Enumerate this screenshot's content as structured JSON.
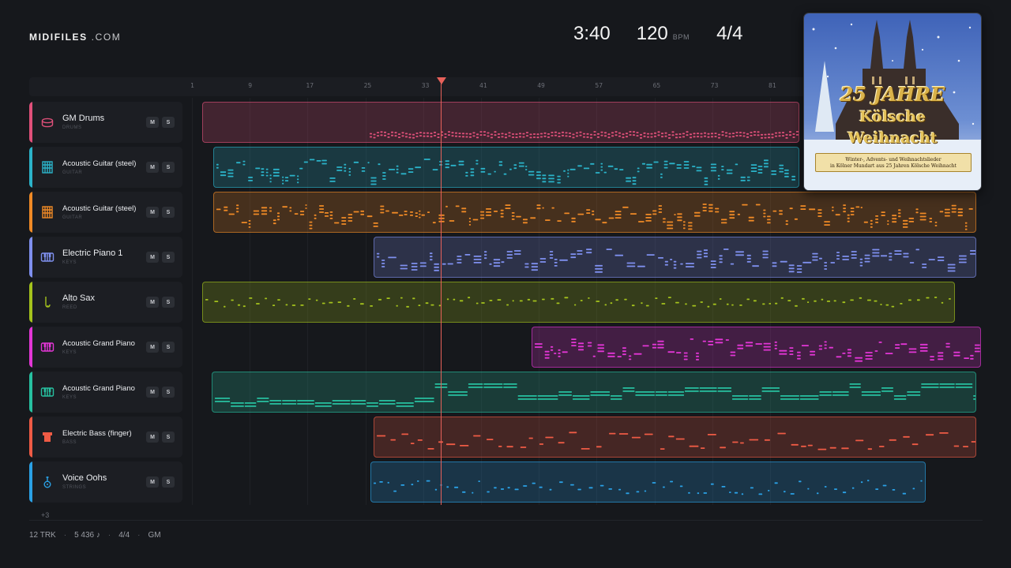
{
  "header": {
    "brand_main": "MIDIFILES",
    "brand_domain": ".COM",
    "duration": "3:40",
    "tempo": "120",
    "tempo_unit": "BPM",
    "time_signature": "4/4"
  },
  "ruler": {
    "bars": [
      "1",
      "9",
      "17",
      "25",
      "33",
      "41",
      "49",
      "57",
      "65",
      "73",
      "81"
    ]
  },
  "tracks": [
    {
      "name": "GM Drums",
      "category": "DRUMS",
      "color": "#e0507a",
      "icon": "drum-icon",
      "mute": "M",
      "solo": "S"
    },
    {
      "name": "Acoustic Guitar (steel)",
      "category": "GUITAR",
      "color": "#2bb3c9",
      "icon": "guitar-icon",
      "mute": "M",
      "solo": "S"
    },
    {
      "name": "Acoustic Guitar (steel)",
      "category": "GUITAR",
      "color": "#f08a26",
      "icon": "guitar-icon",
      "mute": "M",
      "solo": "S"
    },
    {
      "name": "Electric Piano 1",
      "category": "KEYS",
      "color": "#7f90ef",
      "icon": "keyboard-icon",
      "mute": "M",
      "solo": "S"
    },
    {
      "name": "Alto Sax",
      "category": "REED",
      "color": "#a4c21c",
      "icon": "saxophone-icon",
      "mute": "M",
      "solo": "S"
    },
    {
      "name": "Acoustic Grand Piano",
      "category": "KEYS",
      "color": "#e336d6",
      "icon": "keyboard-icon",
      "mute": "M",
      "solo": "S"
    },
    {
      "name": "Acoustic Grand Piano",
      "category": "KEYS",
      "color": "#27c0a0",
      "icon": "keyboard-icon",
      "mute": "M",
      "solo": "S"
    },
    {
      "name": "Electric Bass (finger)",
      "category": "BASS",
      "color": "#ef5b45",
      "icon": "bass-icon",
      "mute": "M",
      "solo": "S"
    },
    {
      "name": "Voice Oohs",
      "category": "STRINGS",
      "color": "#2aa1e6",
      "icon": "violin-icon",
      "mute": "M",
      "solo": "S"
    }
  ],
  "more_tracks": "+3",
  "footer": {
    "tracks": "12 TRK",
    "notes": "5 436 ♪",
    "signature": "4/4",
    "standard": "GM"
  },
  "album": {
    "title_line1": "25 JAHRE",
    "title_line2": "Kölsche",
    "title_line3": "Weihnacht",
    "subtitle_line1": "Winter-, Advents- und Weihnachtslieder",
    "subtitle_line2": "in Kölner Mundart aus 25 Jahren Kölsche Weihnacht"
  }
}
